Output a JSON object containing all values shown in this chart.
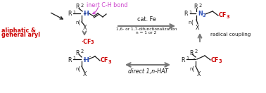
{
  "bg_color": "#ffffff",
  "inert_text": "inert C-H bond",
  "inert_color": "#cc44cc",
  "aliphatic_text": "aliphatic &",
  "aliphatic_text2": "general aryl",
  "aliphatic_color": "#cc0000",
  "cat_fe_text": "cat. Fe",
  "difunc_text": "1,6- or 1,7-difunctionalization",
  "n_text": "n = 1 or 2",
  "radical_coupling_text": "radical coupling",
  "hat_text": "direct 1,n-HAT",
  "cf3_color": "#cc0000",
  "blue_color": "#3355bb",
  "black_color": "#1a1a1a",
  "gray_color": "#777777",
  "arrow_gray": "#888888"
}
